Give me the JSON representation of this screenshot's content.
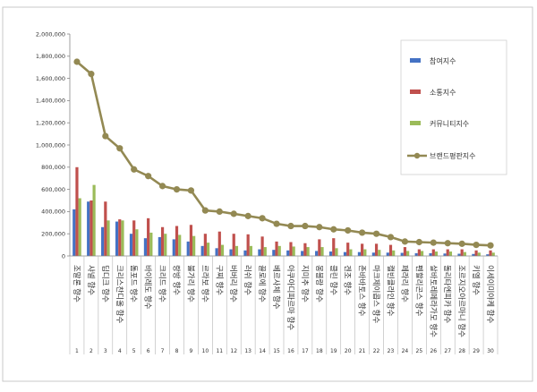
{
  "chart_data": {
    "type": "bar",
    "title": "",
    "xlabel": "",
    "ylabel": "",
    "ylim": [
      0,
      2000000
    ],
    "yticks": [
      0,
      200000,
      400000,
      600000,
      800000,
      1000000,
      1200000,
      1400000,
      1600000,
      1800000,
      2000000
    ],
    "ytick_labels": [
      "0",
      "200,000",
      "400,000",
      "600,000",
      "800,000",
      "1,000,000",
      "1,200,000",
      "1,400,000",
      "1,600,000",
      "1,800,000",
      "2,000,000"
    ],
    "grid": false,
    "legend_position": "right",
    "categories": [
      "조말론 향수",
      "샤넬 향수",
      "딥디크 향수",
      "크리스찬디올 향수",
      "톰포드 향수",
      "바이레도 향수",
      "크리드 향수",
      "랑방 향수",
      "불가리 향수",
      "르라보 향수",
      "구찌 향수",
      "버버리 향수",
      "러쉬 향수",
      "끌로에 향수",
      "베르사체 향수",
      "아쿠아디파르마 향수",
      "지미추 향수",
      "몽블랑 향수",
      "클린 향수",
      "겐조 향수",
      "존바바토스 향수",
      "마크제이콥스 향수",
      "캘빈클라인 향수",
      "페라리 향수",
      "펜할리곤스 향수",
      "살바토레페라가모 향수",
      "돌리타엔피카 향수",
      "조르지오아르마니 향수",
      "키엘 향수",
      "이세이미야케 향수"
    ],
    "ranks": [
      "1",
      "2",
      "3",
      "4",
      "5",
      "6",
      "7",
      "8",
      "9",
      "10",
      "11",
      "12",
      "13",
      "14",
      "15",
      "16",
      "17",
      "18",
      "19",
      "20",
      "21",
      "22",
      "23",
      "24",
      "25",
      "26",
      "27",
      "28",
      "29",
      "30"
    ],
    "series": [
      {
        "name": "참여지수",
        "type": "bar",
        "color": "#4472C4",
        "values": [
          420000,
          490000,
          260000,
          310000,
          200000,
          160000,
          170000,
          150000,
          130000,
          90000,
          70000,
          60000,
          50000,
          60000,
          55000,
          50000,
          45000,
          45000,
          40000,
          35000,
          35000,
          30000,
          30000,
          28000,
          25000,
          25000,
          22000,
          20000,
          18000,
          15000
        ]
      },
      {
        "name": "소통지수",
        "type": "bar",
        "color": "#C0504D",
        "values": [
          800000,
          500000,
          490000,
          330000,
          320000,
          340000,
          260000,
          270000,
          280000,
          200000,
          220000,
          200000,
          195000,
          175000,
          130000,
          125000,
          115000,
          150000,
          160000,
          120000,
          110000,
          110000,
          100000,
          80000,
          60000,
          60000,
          60000,
          60000,
          50000,
          50000
        ]
      },
      {
        "name": "커뮤니티지수",
        "type": "bar",
        "color": "#9BBB59",
        "values": [
          520000,
          640000,
          320000,
          320000,
          240000,
          210000,
          200000,
          190000,
          180000,
          120000,
          100000,
          90000,
          90000,
          80000,
          90000,
          85000,
          80000,
          80000,
          70000,
          60000,
          60000,
          55000,
          50000,
          45000,
          45000,
          40000,
          40000,
          35000,
          30000,
          30000
        ]
      },
      {
        "name": "브랜드평판지수",
        "type": "line",
        "color": "#938953",
        "values": [
          1750000,
          1640000,
          1080000,
          970000,
          780000,
          720000,
          630000,
          600000,
          590000,
          410000,
          400000,
          380000,
          360000,
          340000,
          290000,
          270000,
          270000,
          260000,
          240000,
          230000,
          210000,
          200000,
          170000,
          130000,
          125000,
          120000,
          115000,
          110000,
          100000,
          95000
        ]
      }
    ]
  }
}
